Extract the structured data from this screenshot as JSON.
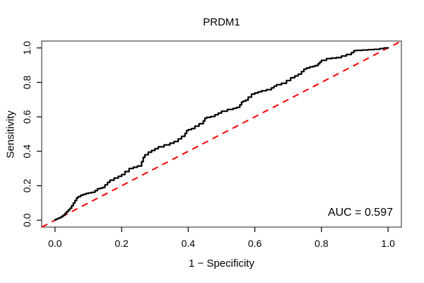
{
  "chart_data": {
    "type": "line",
    "title": "PRDM1",
    "xlabel": "1 − Specificity",
    "ylabel": "Sensitivity",
    "xlim": [
      0,
      1
    ],
    "ylim": [
      0,
      1
    ],
    "axis_padding_frac": 0.04,
    "grid": false,
    "legend": "none",
    "x_tick_values": [
      0,
      0.2,
      0.4,
      0.6,
      0.8,
      1.0
    ],
    "x_tick_labels": [
      "0.0",
      "0.2",
      "0.4",
      "0.6",
      "0.8",
      "1.0"
    ],
    "y_tick_values": [
      0,
      0.2,
      0.4,
      0.6,
      0.8,
      1.0
    ],
    "y_tick_labels": [
      "0.0",
      "0.2",
      "0.4",
      "0.6",
      "0.8",
      "1.0"
    ],
    "annotation": {
      "text": "AUC = 0.597",
      "position": "bottom-right"
    },
    "auc": 0.597,
    "colors": {
      "background": "#FFFFFF",
      "axis": "#000000",
      "roc_curve": "#000000",
      "reference_line": "#FF0000"
    },
    "series": [
      {
        "name": "ROC curve",
        "color": "#000000",
        "style": "step",
        "points": [
          [
            0.0,
            0.0
          ],
          [
            0.01,
            0.008
          ],
          [
            0.02,
            0.016
          ],
          [
            0.03,
            0.03
          ],
          [
            0.04,
            0.05
          ],
          [
            0.05,
            0.07
          ],
          [
            0.06,
            0.1
          ],
          [
            0.07,
            0.13
          ],
          [
            0.085,
            0.145
          ],
          [
            0.1,
            0.155
          ],
          [
            0.12,
            0.162
          ],
          [
            0.135,
            0.182
          ],
          [
            0.15,
            0.19
          ],
          [
            0.165,
            0.22
          ],
          [
            0.19,
            0.245
          ],
          [
            0.21,
            0.265
          ],
          [
            0.235,
            0.3
          ],
          [
            0.26,
            0.315
          ],
          [
            0.27,
            0.365
          ],
          [
            0.29,
            0.395
          ],
          [
            0.31,
            0.415
          ],
          [
            0.345,
            0.437
          ],
          [
            0.37,
            0.457
          ],
          [
            0.39,
            0.487
          ],
          [
            0.4,
            0.52
          ],
          [
            0.42,
            0.532
          ],
          [
            0.445,
            0.56
          ],
          [
            0.455,
            0.592
          ],
          [
            0.48,
            0.602
          ],
          [
            0.5,
            0.622
          ],
          [
            0.535,
            0.643
          ],
          [
            0.555,
            0.655
          ],
          [
            0.565,
            0.685
          ],
          [
            0.58,
            0.697
          ],
          [
            0.6,
            0.732
          ],
          [
            0.62,
            0.745
          ],
          [
            0.65,
            0.758
          ],
          [
            0.665,
            0.778
          ],
          [
            0.695,
            0.795
          ],
          [
            0.72,
            0.827
          ],
          [
            0.74,
            0.848
          ],
          [
            0.755,
            0.877
          ],
          [
            0.775,
            0.89
          ],
          [
            0.79,
            0.898
          ],
          [
            0.8,
            0.918
          ],
          [
            0.83,
            0.938
          ],
          [
            0.86,
            0.944
          ],
          [
            0.89,
            0.962
          ],
          [
            0.905,
            0.984
          ],
          [
            0.94,
            0.988
          ],
          [
            0.975,
            0.992
          ],
          [
            1.0,
            1.0
          ]
        ]
      },
      {
        "name": "chance diagonal",
        "color": "#FF0000",
        "style": "dashed",
        "points": [
          [
            0,
            0
          ],
          [
            1,
            1
          ]
        ],
        "extends_to_box_corners": true
      }
    ]
  }
}
